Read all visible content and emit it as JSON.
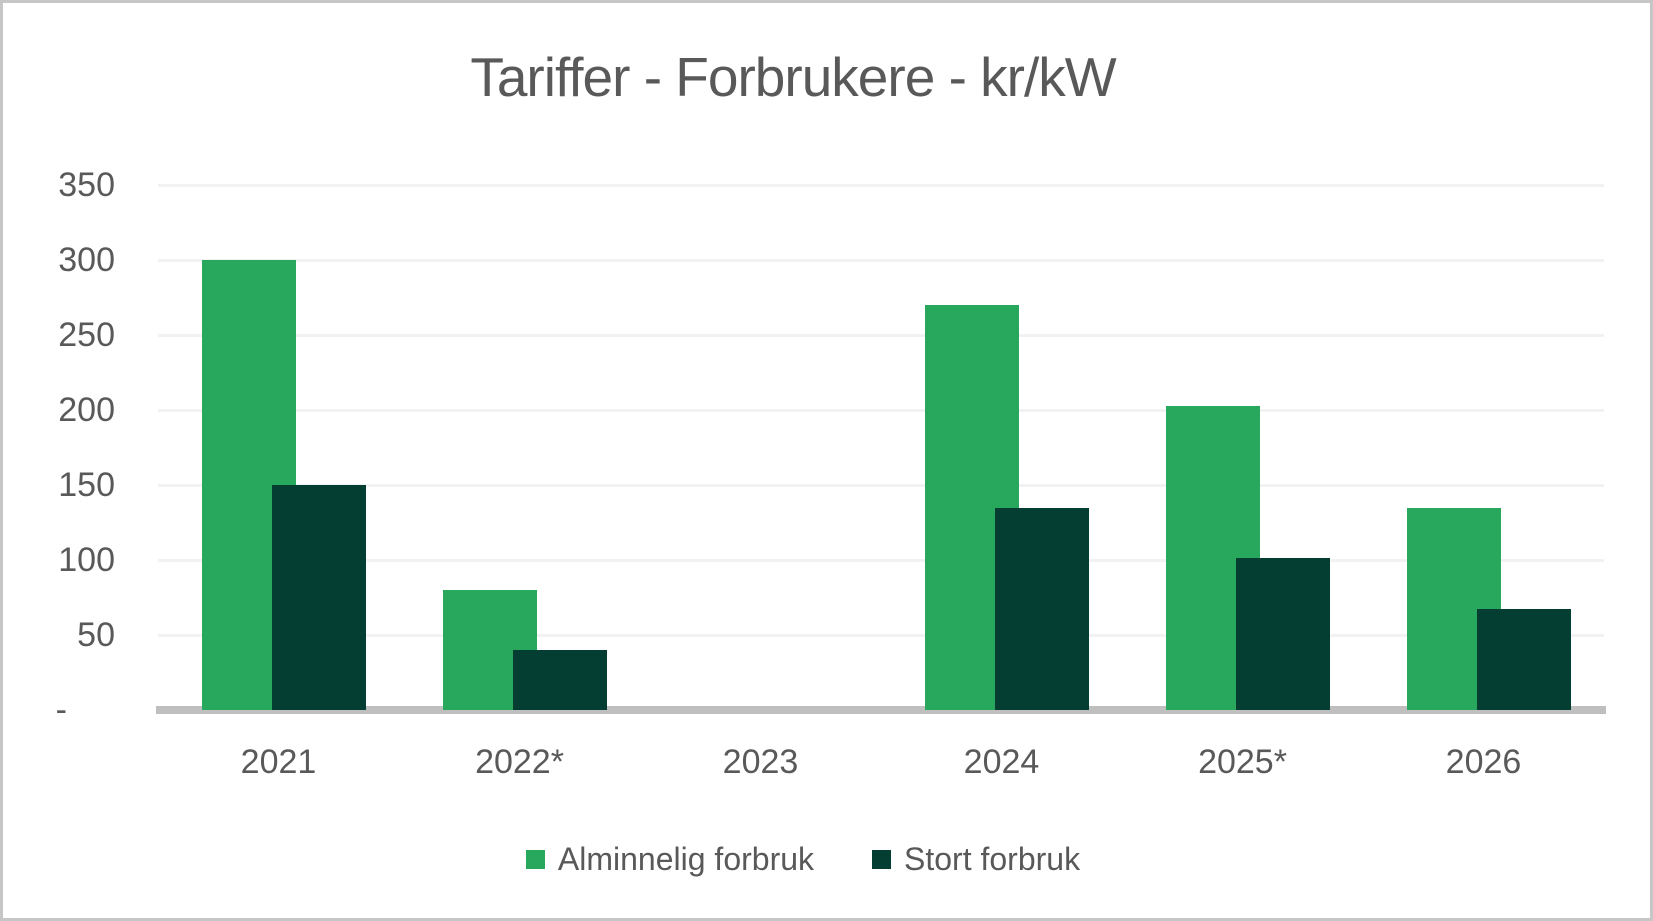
{
  "chart_data": {
    "type": "bar",
    "title": "Tariffer - Forbrukere - kr/kW",
    "categories": [
      "2021",
      "2022*",
      "2023",
      "2024",
      "2025*",
      "2026"
    ],
    "series": [
      {
        "name": "Alminnelig forbruk",
        "color": "#27a85c",
        "values": [
          300,
          80,
          0,
          270,
          202.5,
          135
        ]
      },
      {
        "name": "Stort forbruk",
        "color": "#043e33",
        "values": [
          150,
          40,
          0,
          135,
          101.25,
          67.5
        ]
      }
    ],
    "xlabel": "",
    "ylabel": "",
    "ylim": [
      0,
      350
    ],
    "y_ticks": [
      {
        "label": "350",
        "value": 350
      },
      {
        "label": "300",
        "value": 300
      },
      {
        "label": "250",
        "value": 250
      },
      {
        "label": "200",
        "value": 200
      },
      {
        "label": "150",
        "value": 150
      },
      {
        "label": "100",
        "value": 100
      },
      {
        "label": "50",
        "value": 50
      },
      {
        "label": "-",
        "value": 0
      }
    ],
    "grid": true,
    "legend_position": "bottom",
    "colors": {
      "text": "#595959",
      "gridline": "#f2f2f2",
      "axis_line": "#bfbfbf",
      "frame_border": "#c6c6c6",
      "background": "#ffffff"
    }
  }
}
